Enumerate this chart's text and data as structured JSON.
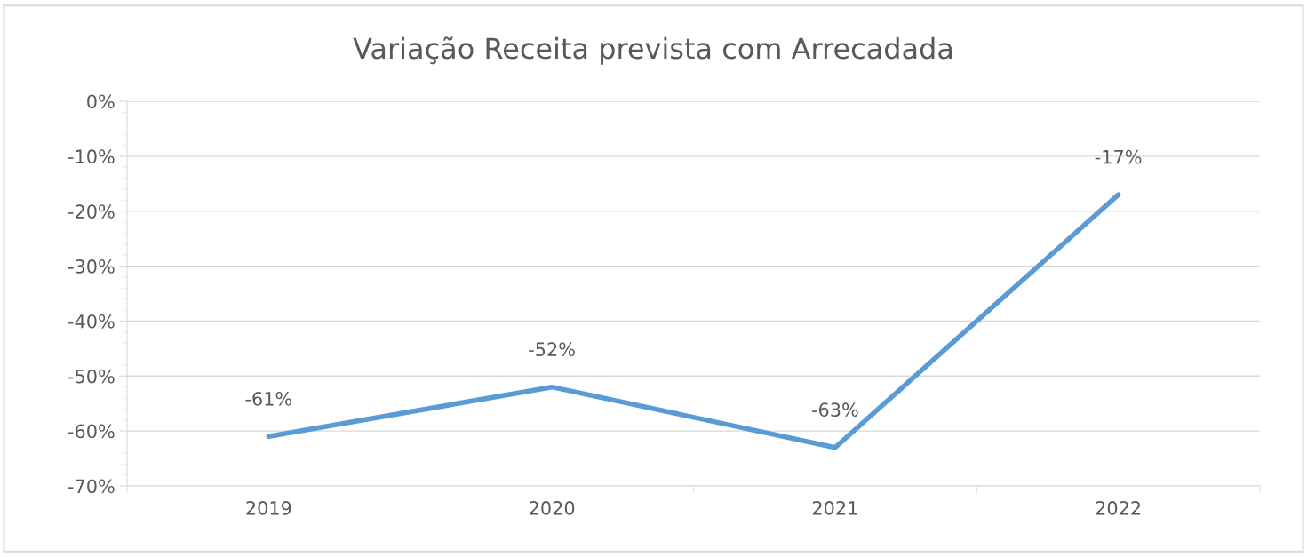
{
  "chart_data": {
    "type": "line",
    "title": "Variação Receita prevista com Arrecadada",
    "categories": [
      "2019",
      "2020",
      "2021",
      "2022"
    ],
    "series": [
      {
        "color": "#5b9bd5",
        "values": [
          -61,
          -52,
          -63,
          -17
        ],
        "value_labels": [
          "-61%",
          "-52%",
          "-63%",
          "-17%"
        ]
      }
    ],
    "ylim": [
      -70,
      0
    ],
    "yticks": [
      {
        "value": 0,
        "label": "0%"
      },
      {
        "value": -10,
        "label": "-10%"
      },
      {
        "value": -20,
        "label": "-20%"
      },
      {
        "value": -30,
        "label": "-30%"
      },
      {
        "value": -40,
        "label": "-40%"
      },
      {
        "value": -50,
        "label": "-50%"
      },
      {
        "value": -60,
        "label": "-60%"
      },
      {
        "value": -70,
        "label": "-70%"
      }
    ],
    "grid": "y",
    "legend": false,
    "marker": "none",
    "line_style": "solid"
  }
}
